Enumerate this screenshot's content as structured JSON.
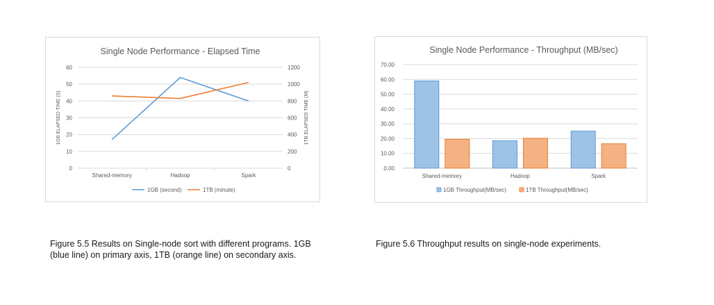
{
  "chart_data": [
    {
      "type": "line",
      "title": "Single Node Performance  - Elapsed Time",
      "categories": [
        "Shared-memory",
        "Hadoop",
        "Spark"
      ],
      "ylabel": "1GB ELAPSED TIME (S)",
      "y2label": "1TB ELAPSED TIME (M)",
      "ylim": [
        0,
        60
      ],
      "y2lim": [
        0,
        1200
      ],
      "yticks": [
        0,
        10,
        20,
        30,
        40,
        50,
        60
      ],
      "y2ticks": [
        0,
        200,
        400,
        600,
        800,
        1000,
        1200
      ],
      "legend_position": "bottom",
      "grid": true,
      "series": [
        {
          "name": "1GB (second)",
          "axis": "primary",
          "values": [
            17,
            54,
            40
          ],
          "color": "#5b9bd5"
        },
        {
          "name": "1TB (minute)",
          "axis": "secondary",
          "values": [
            860,
            830,
            1020
          ],
          "color": "#ed7d31"
        }
      ]
    },
    {
      "type": "bar",
      "title": "Single Node Performance  - Throughput  (MB/sec)",
      "categories": [
        "Shared-memory",
        "Hadoop",
        "Spark"
      ],
      "ylim": [
        0,
        70
      ],
      "yticks": [
        "0.00",
        "10.00",
        "20.00",
        "30.00",
        "40.00",
        "50.00",
        "60.00",
        "70.00"
      ],
      "legend_position": "bottom",
      "grid": true,
      "series": [
        {
          "name": "1GB Throughput(MB/sec)",
          "values": [
            59,
            18.5,
            25
          ],
          "color": "#5b9bd5"
        },
        {
          "name": "1TB Throughput(MB/sec)",
          "values": [
            19.5,
            20.2,
            16.5
          ],
          "color": "#ed7d31"
        }
      ]
    }
  ],
  "captions": {
    "left": "Figure 5.5 Results on Single-node sort with different programs. 1GB (blue line) on primary axis, 1TB (orange line) on secondary axis.",
    "right": "Figure 5.6 Throughput results on single-node experiments."
  }
}
